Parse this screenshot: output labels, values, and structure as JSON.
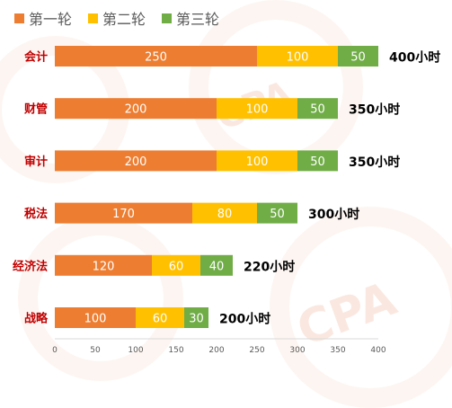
{
  "chart_data": {
    "type": "bar",
    "orientation": "horizontal",
    "stacked": true,
    "categories": [
      "会计",
      "财管",
      "审计",
      "税法",
      "经济法",
      "战略"
    ],
    "series": [
      {
        "name": "第一轮",
        "color": "#ED7D31",
        "values": [
          250,
          200,
          200,
          170,
          120,
          100
        ]
      },
      {
        "name": "第二轮",
        "color": "#FFC000",
        "values": [
          100,
          100,
          100,
          80,
          60,
          60
        ]
      },
      {
        "name": "第三轮",
        "color": "#70AD47",
        "values": [
          50,
          50,
          50,
          50,
          40,
          30
        ]
      }
    ],
    "totals": [
      "400小时",
      "350小时",
      "350小时",
      "300小时",
      "220小时",
      "200小时"
    ],
    "xlim": [
      0,
      400
    ],
    "xticks": [
      0,
      50,
      100,
      150,
      200,
      250,
      300,
      350,
      400
    ],
    "legend_position": "top-left",
    "category_label_color": "#C00000",
    "grid": false
  }
}
